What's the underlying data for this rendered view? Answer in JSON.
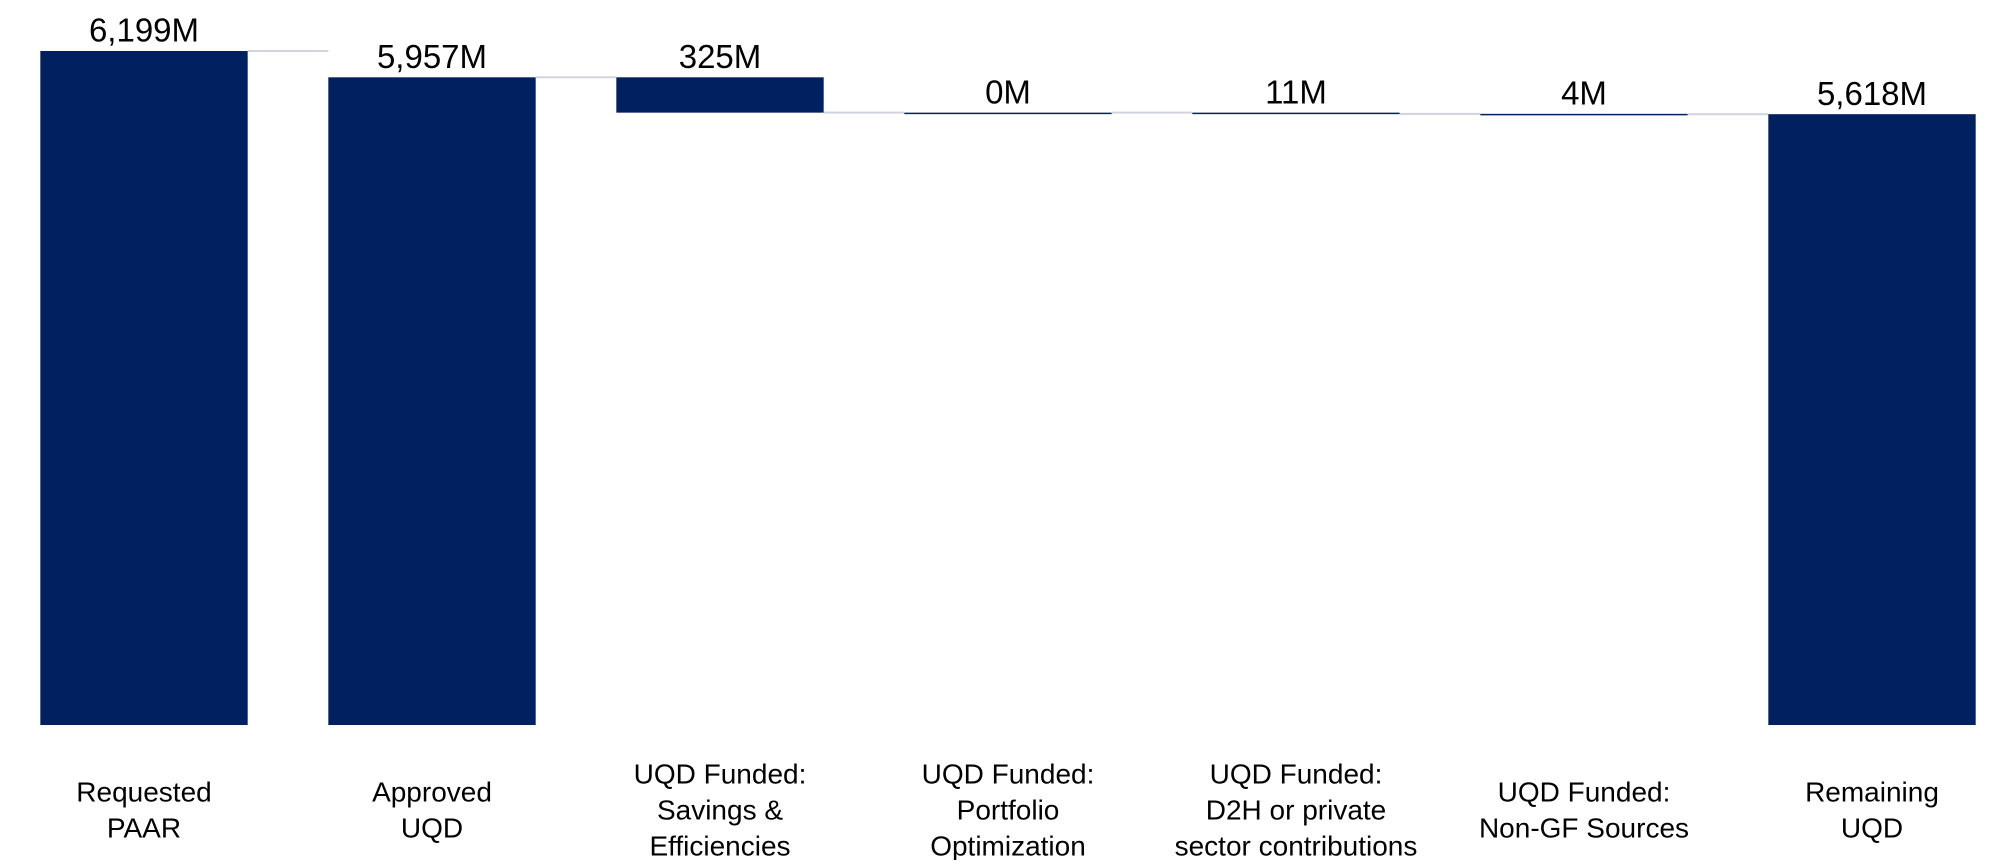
{
  "chart_data": {
    "type": "waterfall",
    "categories": [
      [
        "Requested",
        "PAAR"
      ],
      [
        "Approved",
        "UQD"
      ],
      [
        "UQD Funded:",
        "Savings &",
        "Efficiencies"
      ],
      [
        "UQD Funded:",
        "Portfolio",
        "Optimization"
      ],
      [
        "UQD Funded:",
        "D2H or private",
        "sector contributions"
      ],
      [
        "UQD Funded:",
        "Non-GF Sources"
      ],
      [
        "Remaining",
        "UQD"
      ]
    ],
    "values": [
      6199,
      5957,
      325,
      0,
      11,
      4,
      5618
    ],
    "value_labels": [
      "6,199M",
      "5,957M",
      "325M",
      "0M",
      "11M",
      "4M",
      "5,618M"
    ],
    "kinds": [
      "total",
      "total",
      "decrease",
      "decrease",
      "decrease",
      "decrease",
      "total"
    ],
    "color": "#002060"
  }
}
